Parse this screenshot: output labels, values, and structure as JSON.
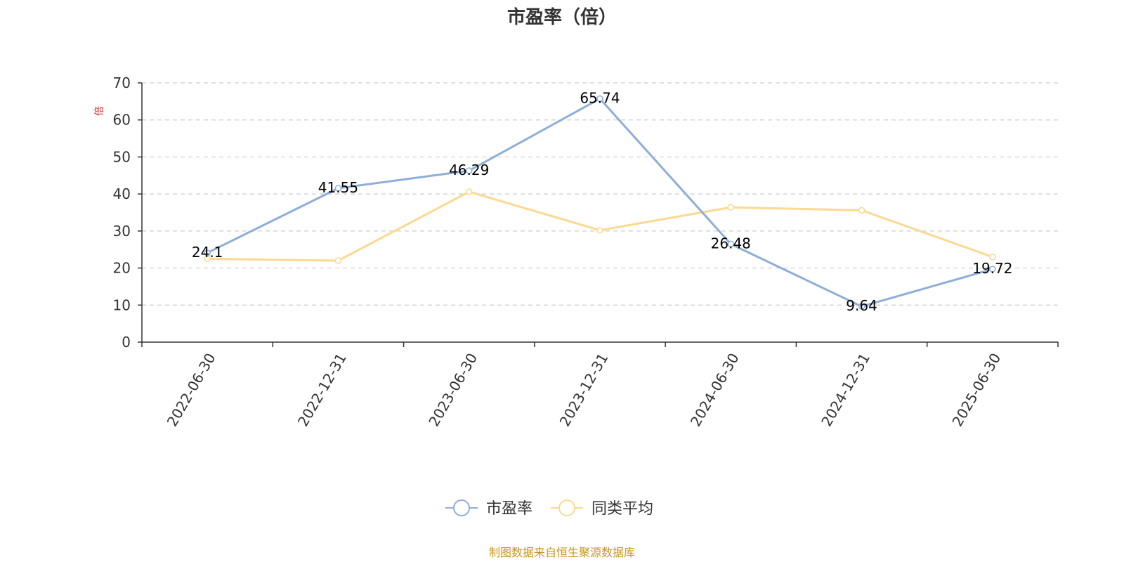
{
  "chart_data": {
    "type": "line",
    "title": "市盈率（倍）",
    "ylabel": "倍",
    "categories": [
      "2022-06-30",
      "2022-12-31",
      "2023-06-30",
      "2023-12-31",
      "2024-06-30",
      "2024-12-31",
      "2025-06-30"
    ],
    "ylim": [
      0,
      70
    ],
    "yticks": [
      0,
      10,
      20,
      30,
      40,
      50,
      60,
      70
    ],
    "grid": true,
    "legend_position": "bottom-center",
    "series": [
      {
        "name": "市盈率",
        "values": [
          24.1,
          41.55,
          46.29,
          65.74,
          26.48,
          9.64,
          19.72
        ],
        "labels": [
          "24.1",
          "41.55",
          "46.29",
          "65.74",
          "26.48",
          "9.64",
          "19.72"
        ],
        "color": "#8eaed8"
      },
      {
        "name": "同类平均",
        "values": [
          22.5,
          22.0,
          40.6,
          30.2,
          36.4,
          35.6,
          23.0
        ],
        "color": "#fbd990"
      }
    ]
  },
  "source_note": "制图数据来自恒生聚源数据库",
  "colors": {
    "axis": "#333333",
    "grid": "#cccccc",
    "unit_label": "#e02020",
    "source_note": "#c8961e"
  }
}
